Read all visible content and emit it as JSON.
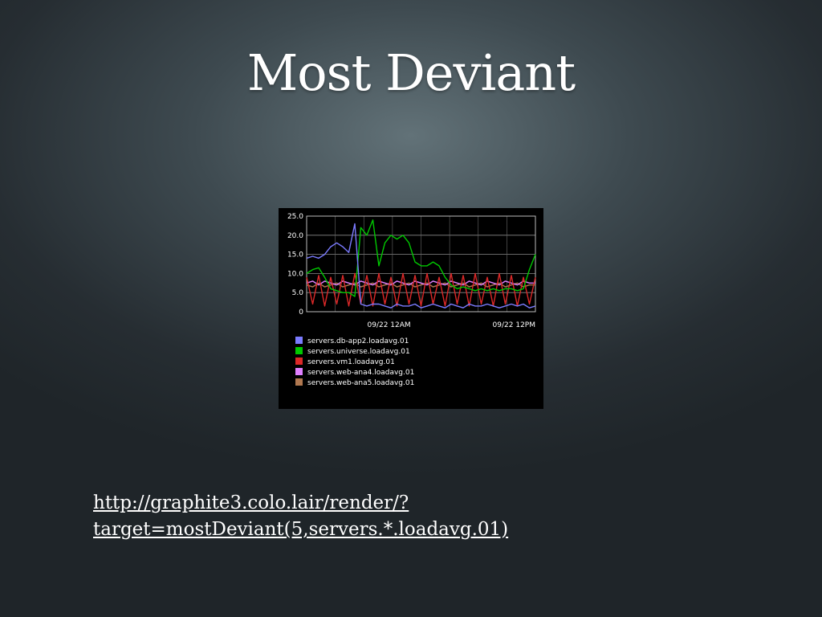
{
  "slide": {
    "title": "Most Deviant",
    "link_line1": "http://graphite3.colo.lair/render/?",
    "link_line2": "target=mostDeviant(5,servers.*.loadavg.01)"
  },
  "chart_data": {
    "type": "line",
    "title": "",
    "xlabel": "",
    "ylabel": "",
    "ylim": [
      0,
      25
    ],
    "yticks": [
      "25.0",
      "20.0",
      "15.0",
      "10.0",
      "5.0",
      "0"
    ],
    "xticks": [
      "09/22 12AM",
      "09/22 12PM"
    ],
    "grid": true,
    "legend_position": "bottom",
    "x_unit": "hours from start",
    "series": [
      {
        "name": "servers.db-app2.loadavg.01",
        "color": "#7b7bff",
        "x": [
          0,
          1,
          2,
          3,
          4,
          5,
          6,
          7,
          8,
          9,
          10,
          11,
          12,
          13,
          14,
          15,
          16,
          17,
          18,
          19,
          20,
          21,
          22,
          23,
          24,
          25,
          26,
          27,
          28,
          29,
          30,
          31,
          32,
          33,
          34,
          35,
          36,
          37,
          38
        ],
        "values": [
          14,
          14.5,
          14,
          15,
          17,
          18,
          17,
          15.5,
          23,
          2,
          1.5,
          2,
          2,
          1.5,
          1,
          2,
          1.5,
          1.5,
          2,
          1,
          1.5,
          2,
          1.5,
          1,
          2,
          1.5,
          1,
          2,
          1.5,
          1.5,
          2,
          1.5,
          1,
          1.5,
          2,
          1.5,
          2,
          1,
          1.5
        ]
      },
      {
        "name": "servers.universe.loadavg.01",
        "color": "#00c800",
        "x": [
          0,
          1,
          2,
          3,
          4,
          5,
          6,
          7,
          8,
          9,
          10,
          11,
          12,
          13,
          14,
          15,
          16,
          17,
          18,
          19,
          20,
          21,
          22,
          23,
          24,
          25,
          26,
          27,
          28,
          29,
          30,
          31,
          32,
          33,
          34,
          35,
          36,
          37,
          38
        ],
        "values": [
          10,
          11,
          11.5,
          9,
          6,
          5.5,
          5,
          5,
          4,
          22,
          20,
          24,
          12,
          18,
          20,
          19,
          20,
          18,
          13,
          12,
          12,
          13,
          12,
          9,
          7,
          6,
          6.5,
          6,
          5.5,
          6,
          5.5,
          6,
          5.5,
          6,
          6,
          5.5,
          6,
          11,
          15
        ]
      },
      {
        "name": "servers.vm1.loadavg.01",
        "color": "#dc2828",
        "x": [
          0,
          1,
          2,
          3,
          4,
          5,
          6,
          7,
          8,
          9,
          10,
          11,
          12,
          13,
          14,
          15,
          16,
          17,
          18,
          19,
          20,
          21,
          22,
          23,
          24,
          25,
          26,
          27,
          28,
          29,
          30,
          31,
          32,
          33,
          34,
          35,
          36,
          37,
          38
        ],
        "values": [
          9,
          2,
          9.5,
          1.5,
          9,
          2,
          9.5,
          1.5,
          10,
          2,
          9.5,
          1.5,
          10,
          2,
          9,
          1.5,
          10,
          2,
          9.5,
          1.5,
          10,
          2,
          9,
          1.5,
          10,
          2,
          9.5,
          1.5,
          10,
          2,
          9,
          1.5,
          10,
          2,
          9.5,
          1.5,
          9,
          2,
          9
        ]
      },
      {
        "name": "servers.web-ana4.loadavg.01",
        "color": "#e080ff",
        "x": [
          0,
          1,
          2,
          3,
          4,
          5,
          6,
          7,
          8,
          9,
          10,
          11,
          12,
          13,
          14,
          15,
          16,
          17,
          18,
          19,
          20,
          21,
          22,
          23,
          24,
          25,
          26,
          27,
          28,
          29,
          30,
          31,
          32,
          33,
          34,
          35,
          36,
          37,
          38
        ],
        "values": [
          7.5,
          8,
          7,
          8,
          7.5,
          7,
          8,
          7.5,
          7,
          8,
          7.5,
          7,
          8,
          7.5,
          7,
          8,
          7.5,
          7,
          8,
          7.5,
          7,
          8,
          7.5,
          7,
          8,
          7.5,
          7,
          8,
          7.5,
          7,
          8,
          7.5,
          7,
          8,
          7.5,
          7,
          8,
          7.5,
          7.5
        ]
      },
      {
        "name": "servers.web-ana5.loadavg.01",
        "color": "#b07850",
        "x": [
          0,
          1,
          2,
          3,
          4,
          5,
          6,
          7,
          8,
          9,
          10,
          11,
          12,
          13,
          14,
          15,
          16,
          17,
          18,
          19,
          20,
          21,
          22,
          23,
          24,
          25,
          26,
          27,
          28,
          29,
          30,
          31,
          32,
          33,
          34,
          35,
          36,
          37,
          38
        ],
        "values": [
          7,
          6.5,
          7.5,
          6.5,
          7,
          7.5,
          6.5,
          7,
          7.5,
          6.5,
          7,
          7.5,
          6.5,
          7,
          7.5,
          6.5,
          7,
          7.5,
          6.5,
          7,
          7.5,
          6.5,
          7,
          7.5,
          6.5,
          7,
          7.5,
          6.5,
          7,
          7.5,
          6.5,
          7,
          7.5,
          6.5,
          7,
          7.5,
          6.5,
          7,
          7
        ]
      }
    ]
  }
}
